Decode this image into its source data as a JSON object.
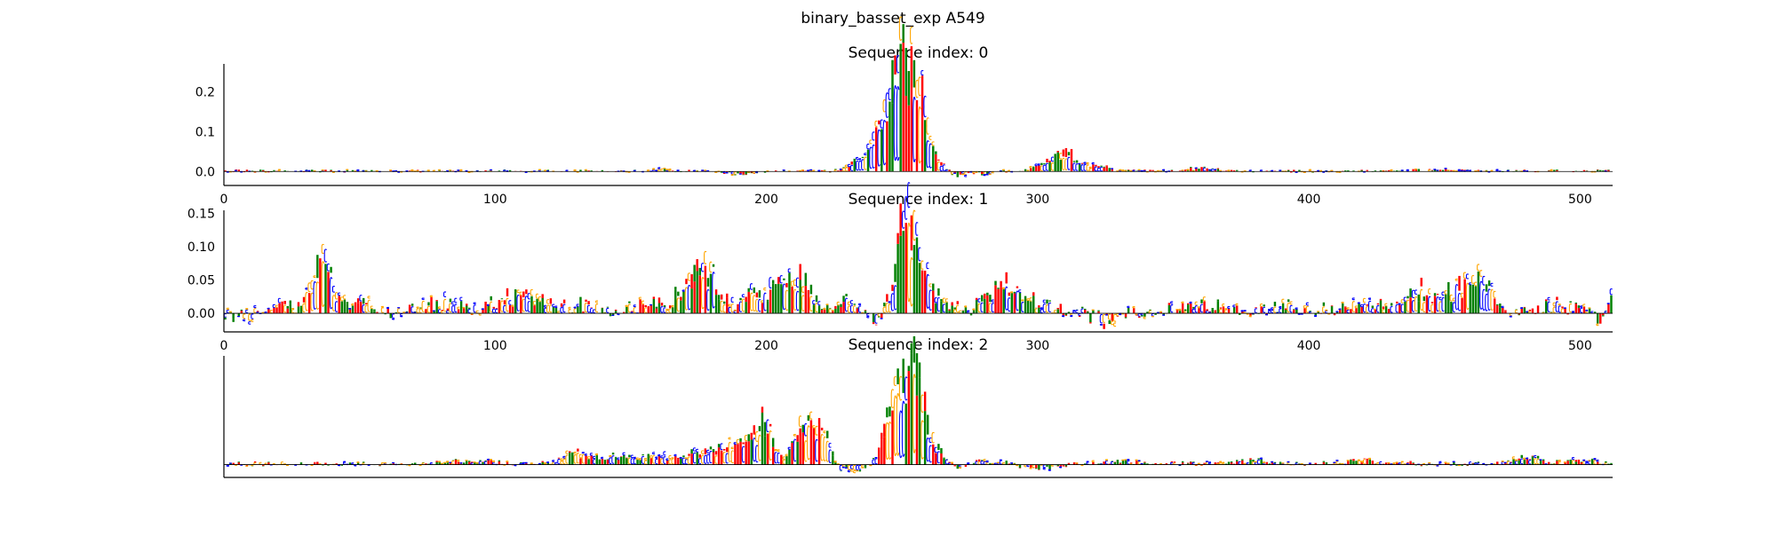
{
  "suptitle": "binary_basset_exp A549",
  "colors": {
    "A": "#008000",
    "C": "#0000ff",
    "G": "#ffa500",
    "T": "#ff0000"
  },
  "chart_data": [
    {
      "type": "sequence-logo",
      "title": "Sequence index: 0",
      "xlim": [
        0,
        512
      ],
      "ylim": [
        -0.035,
        0.27
      ],
      "xticks": [
        0,
        100,
        200,
        300,
        400,
        500
      ],
      "xtick_labels": [
        "0",
        "100",
        "200",
        "300",
        "400",
        "500"
      ],
      "yticks": [
        0.0,
        0.1,
        0.2
      ],
      "ytick_labels": [
        "0.0",
        "0.1",
        "0.2"
      ],
      "show_y_ticks": true,
      "noise_level": 0.004,
      "peaks": [
        {
          "center": 160,
          "width": 3,
          "height": 0.008
        },
        {
          "center": 190,
          "width": 5,
          "height": -0.012
        },
        {
          "center": 232,
          "width": 3,
          "height": 0.03
        },
        {
          "center": 238,
          "width": 3,
          "height": 0.05
        },
        {
          "center": 242,
          "width": 3,
          "height": 0.08
        },
        {
          "center": 247,
          "width": 4,
          "height": 0.2
        },
        {
          "center": 250,
          "width": 3,
          "height": 0.26
        },
        {
          "center": 256,
          "width": 3,
          "height": 0.27
        },
        {
          "center": 259,
          "width": 4,
          "height": 0.03
        },
        {
          "center": 265,
          "width": 3,
          "height": 0.03
        },
        {
          "center": 268,
          "width": 4,
          "height": -0.025
        },
        {
          "center": 280,
          "width": 3,
          "height": -0.01
        },
        {
          "center": 305,
          "width": 5,
          "height": 0.035
        },
        {
          "center": 310,
          "width": 3,
          "height": 0.045
        },
        {
          "center": 320,
          "width": 5,
          "height": 0.02
        },
        {
          "center": 360,
          "width": 6,
          "height": 0.01
        },
        {
          "center": 450,
          "width": 8,
          "height": 0.006
        }
      ]
    },
    {
      "type": "sequence-logo",
      "title": "Sequence index: 1",
      "xlim": [
        0,
        512
      ],
      "ylim": [
        -0.028,
        0.155
      ],
      "xticks": [
        0,
        100,
        200,
        300,
        400,
        500
      ],
      "xtick_labels": [
        "0",
        "100",
        "200",
        "300",
        "400",
        "500"
      ],
      "yticks": [
        0.0,
        0.05,
        0.1,
        0.15
      ],
      "ytick_labels": [
        "0.00",
        "0.05",
        "0.10",
        "0.15"
      ],
      "show_y_ticks": true,
      "noise_level": 0.012,
      "peaks": [
        {
          "center": 8,
          "width": 4,
          "height": -0.012
        },
        {
          "center": 20,
          "width": 5,
          "height": 0.015
        },
        {
          "center": 34,
          "width": 3,
          "height": 0.078
        },
        {
          "center": 38,
          "width": 3,
          "height": 0.065
        },
        {
          "center": 50,
          "width": 6,
          "height": 0.02
        },
        {
          "center": 62,
          "width": 5,
          "height": -0.012
        },
        {
          "center": 80,
          "width": 8,
          "height": 0.018
        },
        {
          "center": 105,
          "width": 5,
          "height": 0.03
        },
        {
          "center": 115,
          "width": 4,
          "height": 0.025
        },
        {
          "center": 130,
          "width": 6,
          "height": 0.012
        },
        {
          "center": 155,
          "width": 5,
          "height": 0.018
        },
        {
          "center": 170,
          "width": 4,
          "height": 0.045
        },
        {
          "center": 177,
          "width": 4,
          "height": 0.088
        },
        {
          "center": 195,
          "width": 5,
          "height": 0.035
        },
        {
          "center": 205,
          "width": 4,
          "height": 0.045
        },
        {
          "center": 213,
          "width": 4,
          "height": 0.055
        },
        {
          "center": 230,
          "width": 5,
          "height": 0.02
        },
        {
          "center": 240,
          "width": 3,
          "height": -0.015
        },
        {
          "center": 250,
          "width": 3,
          "height": 0.15
        },
        {
          "center": 254,
          "width": 3,
          "height": 0.155
        },
        {
          "center": 262,
          "width": 4,
          "height": 0.04
        },
        {
          "center": 285,
          "width": 5,
          "height": 0.045
        },
        {
          "center": 295,
          "width": 5,
          "height": 0.03
        },
        {
          "center": 325,
          "width": 4,
          "height": -0.025
        },
        {
          "center": 360,
          "width": 6,
          "height": 0.018
        },
        {
          "center": 390,
          "width": 6,
          "height": 0.012
        },
        {
          "center": 420,
          "width": 6,
          "height": 0.02
        },
        {
          "center": 440,
          "width": 4,
          "height": 0.045
        },
        {
          "center": 452,
          "width": 4,
          "height": 0.04
        },
        {
          "center": 460,
          "width": 4,
          "height": 0.055
        },
        {
          "center": 465,
          "width": 3,
          "height": 0.045
        },
        {
          "center": 490,
          "width": 5,
          "height": 0.012
        },
        {
          "center": 508,
          "width": 3,
          "height": -0.018
        },
        {
          "center": 511,
          "width": 2,
          "height": 0.04
        }
      ]
    },
    {
      "type": "sequence-logo",
      "title": "Sequence index: 2",
      "xlim": [
        0,
        512
      ],
      "ylim": [
        -0.02,
        0.17
      ],
      "xticks": [],
      "xtick_labels": [],
      "yticks": [],
      "ytick_labels": [],
      "show_y_ticks": false,
      "noise_level": 0.004,
      "peaks": [
        {
          "center": 90,
          "width": 8,
          "height": 0.006
        },
        {
          "center": 130,
          "width": 5,
          "height": 0.025
        },
        {
          "center": 145,
          "width": 5,
          "height": 0.02
        },
        {
          "center": 160,
          "width": 5,
          "height": 0.018
        },
        {
          "center": 175,
          "width": 5,
          "height": 0.025
        },
        {
          "center": 185,
          "width": 5,
          "height": 0.035
        },
        {
          "center": 195,
          "width": 4,
          "height": 0.05
        },
        {
          "center": 200,
          "width": 3,
          "height": 0.07
        },
        {
          "center": 205,
          "width": 3,
          "height": -0.015
        },
        {
          "center": 213,
          "width": 4,
          "height": 0.085
        },
        {
          "center": 220,
          "width": 3,
          "height": 0.06
        },
        {
          "center": 230,
          "width": 5,
          "height": -0.015
        },
        {
          "center": 245,
          "width": 3,
          "height": 0.08
        },
        {
          "center": 250,
          "width": 3,
          "height": 0.15
        },
        {
          "center": 255,
          "width": 3,
          "height": 0.16
        },
        {
          "center": 262,
          "width": 4,
          "height": 0.04
        },
        {
          "center": 268,
          "width": 4,
          "height": -0.015
        },
        {
          "center": 280,
          "width": 6,
          "height": 0.008
        },
        {
          "center": 300,
          "width": 6,
          "height": -0.01
        },
        {
          "center": 330,
          "width": 8,
          "height": 0.006
        },
        {
          "center": 380,
          "width": 8,
          "height": 0.006
        },
        {
          "center": 420,
          "width": 8,
          "height": 0.008
        },
        {
          "center": 480,
          "width": 5,
          "height": 0.015
        },
        {
          "center": 500,
          "width": 5,
          "height": 0.01
        }
      ]
    }
  ]
}
